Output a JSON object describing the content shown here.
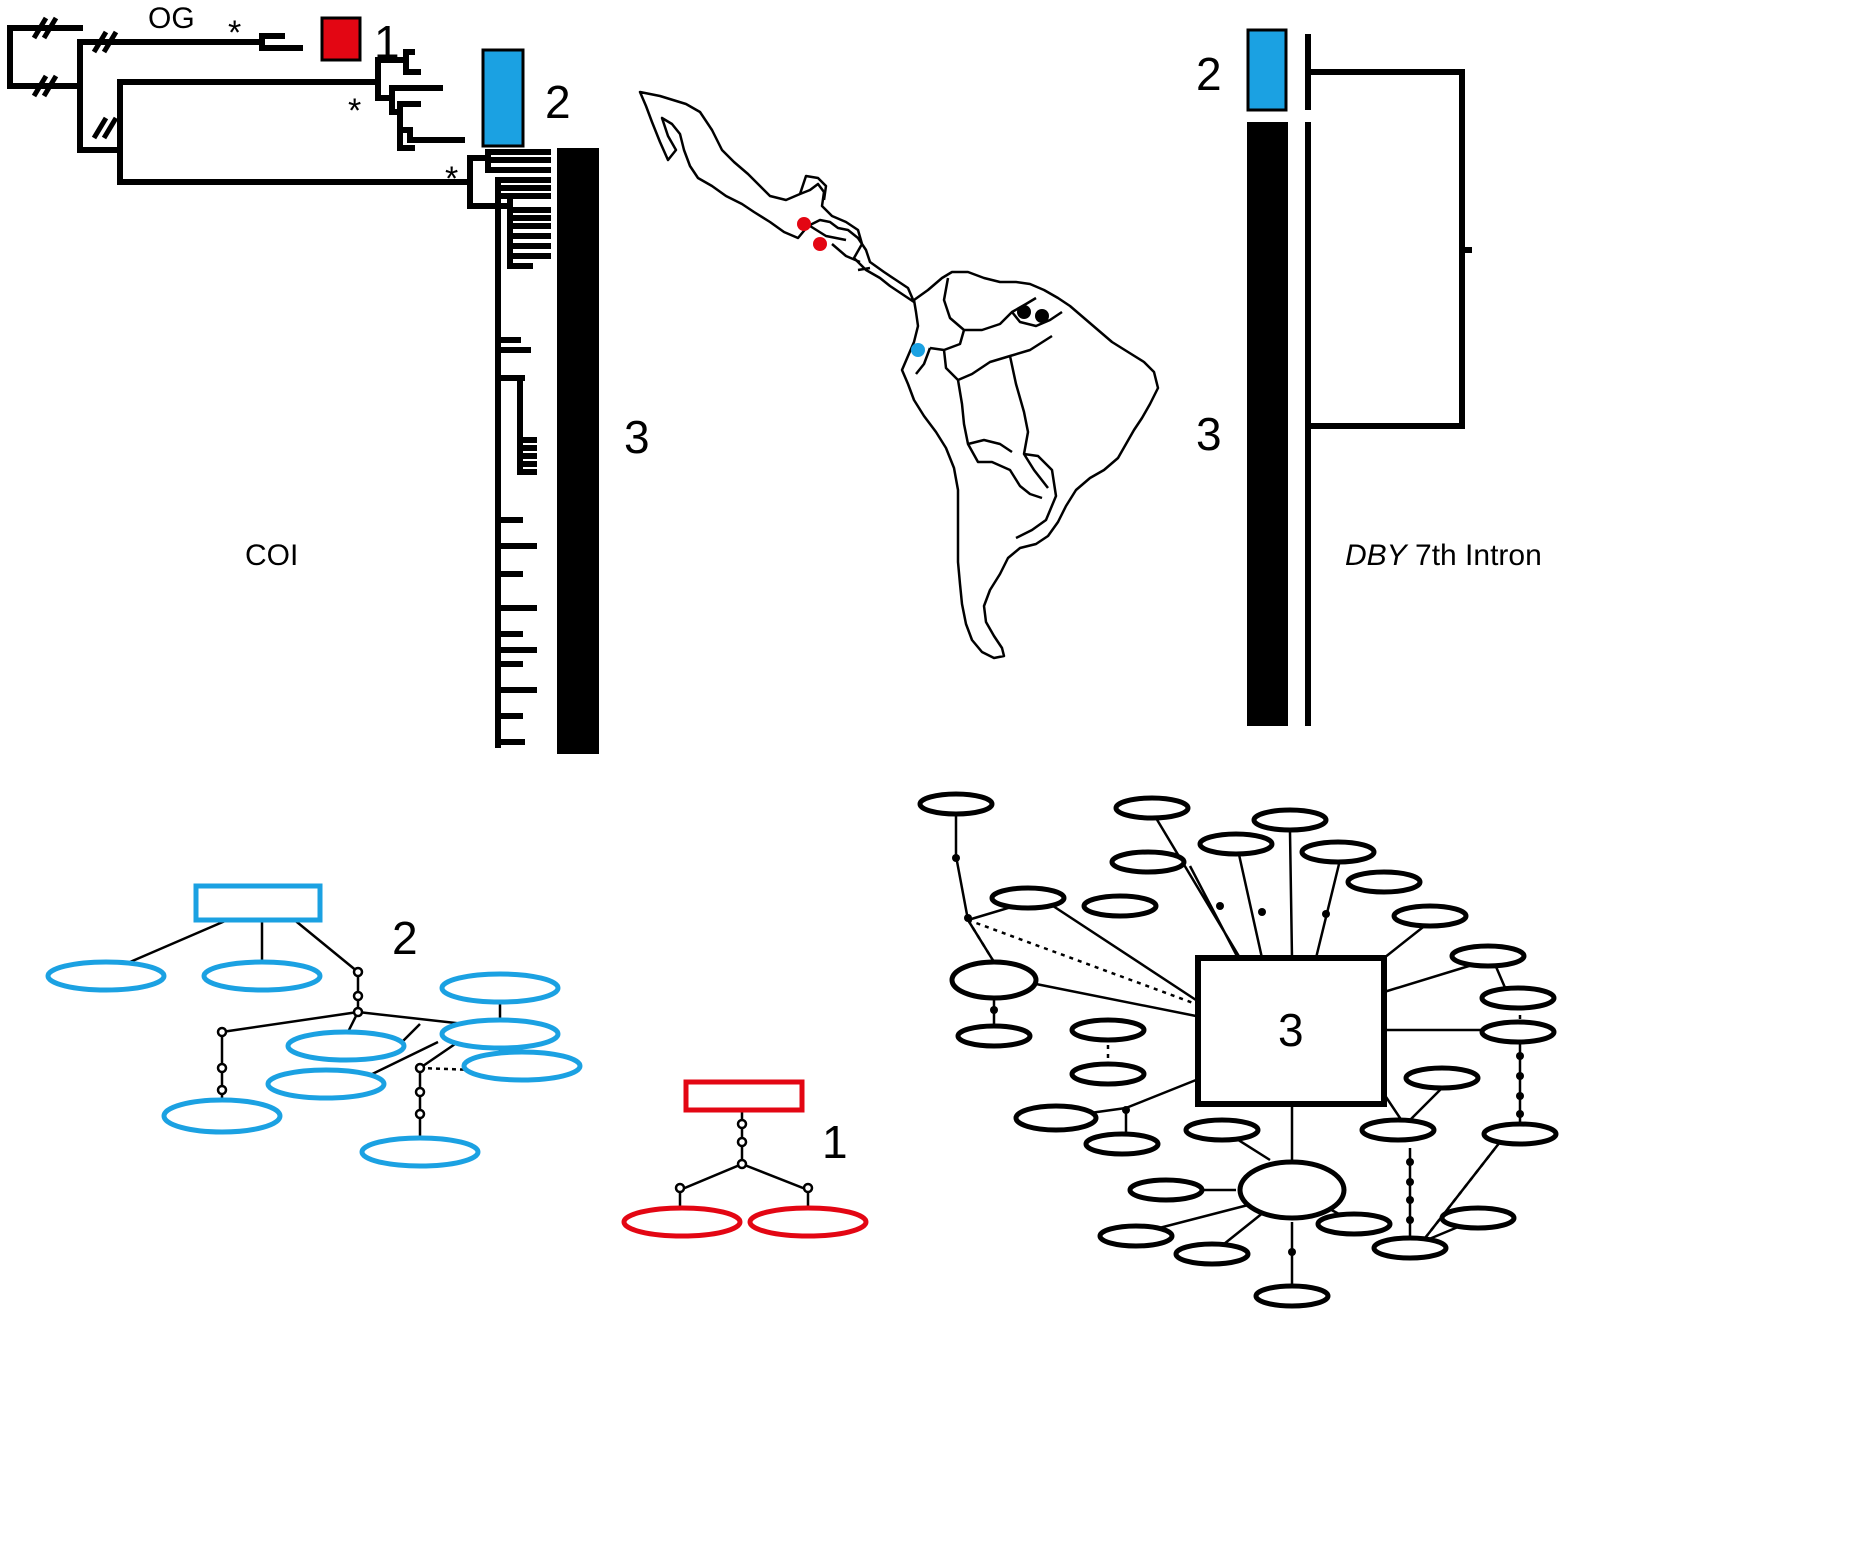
{
  "colors": {
    "clade1": "#e30613",
    "clade2": "#1ba1e2",
    "clade3": "#000000"
  },
  "coi_tree": {
    "outgroup_label": "OG",
    "support_marker": "*",
    "clade_labels": [
      "1",
      "2",
      "3"
    ],
    "gene_label": "COI"
  },
  "map": {
    "sample_dots": [
      {
        "clade": "1",
        "color": "#e30613"
      },
      {
        "clade": "1",
        "color": "#e30613"
      },
      {
        "clade": "2",
        "color": "#1ba1e2"
      },
      {
        "clade": "3",
        "color": "#000000"
      },
      {
        "clade": "3",
        "color": "#000000"
      }
    ]
  },
  "dby_tree": {
    "clade_labels": [
      "2",
      "3"
    ],
    "gene_label_italic": "DBY",
    "gene_label_rest": " 7th Intron"
  },
  "networks": {
    "clade2_label": "2",
    "clade1_label": "1",
    "clade3_label": "3"
  }
}
